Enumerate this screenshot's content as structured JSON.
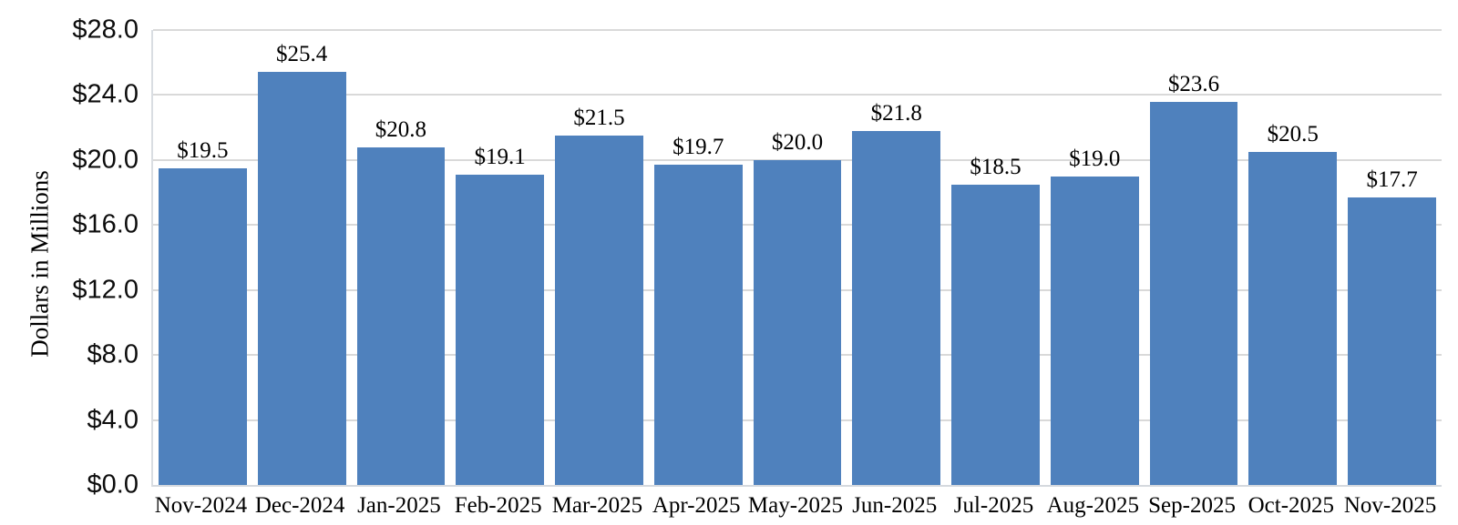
{
  "chart_data": {
    "type": "bar",
    "title": "",
    "xlabel": "",
    "ylabel": "Dollars in Millions",
    "categories": [
      "Nov-2024",
      "Dec-2024",
      "Jan-2025",
      "Feb-2025",
      "Mar-2025",
      "Apr-2025",
      "May-2025",
      "Jun-2025",
      "Jul-2025",
      "Aug-2025",
      "Sep-2025",
      "Oct-2025",
      "Nov-2025"
    ],
    "values": [
      19.5,
      25.4,
      20.8,
      19.1,
      21.5,
      19.7,
      20.0,
      21.8,
      18.5,
      19.0,
      23.6,
      20.5,
      17.7
    ],
    "data_labels": [
      "$19.5",
      "$25.4",
      "$20.8",
      "$19.1",
      "$21.5",
      "$19.7",
      "$20.0",
      "$21.8",
      "$18.5",
      "$19.0",
      "$23.6",
      "$20.5",
      "$17.7"
    ],
    "ylim": [
      0,
      28
    ],
    "ytick_step": 4,
    "yticks": [
      0,
      4,
      8,
      12,
      16,
      20,
      24,
      28
    ],
    "ytick_labels": [
      "$0.0",
      "$4.0",
      "$8.0",
      "$12.0",
      "$16.0",
      "$20.0",
      "$24.0",
      "$28.0"
    ],
    "grid": true,
    "legend": "none",
    "bar_color": "#4f81bd",
    "gridline_color": "#d9d9d9",
    "text_color": "#000000"
  }
}
